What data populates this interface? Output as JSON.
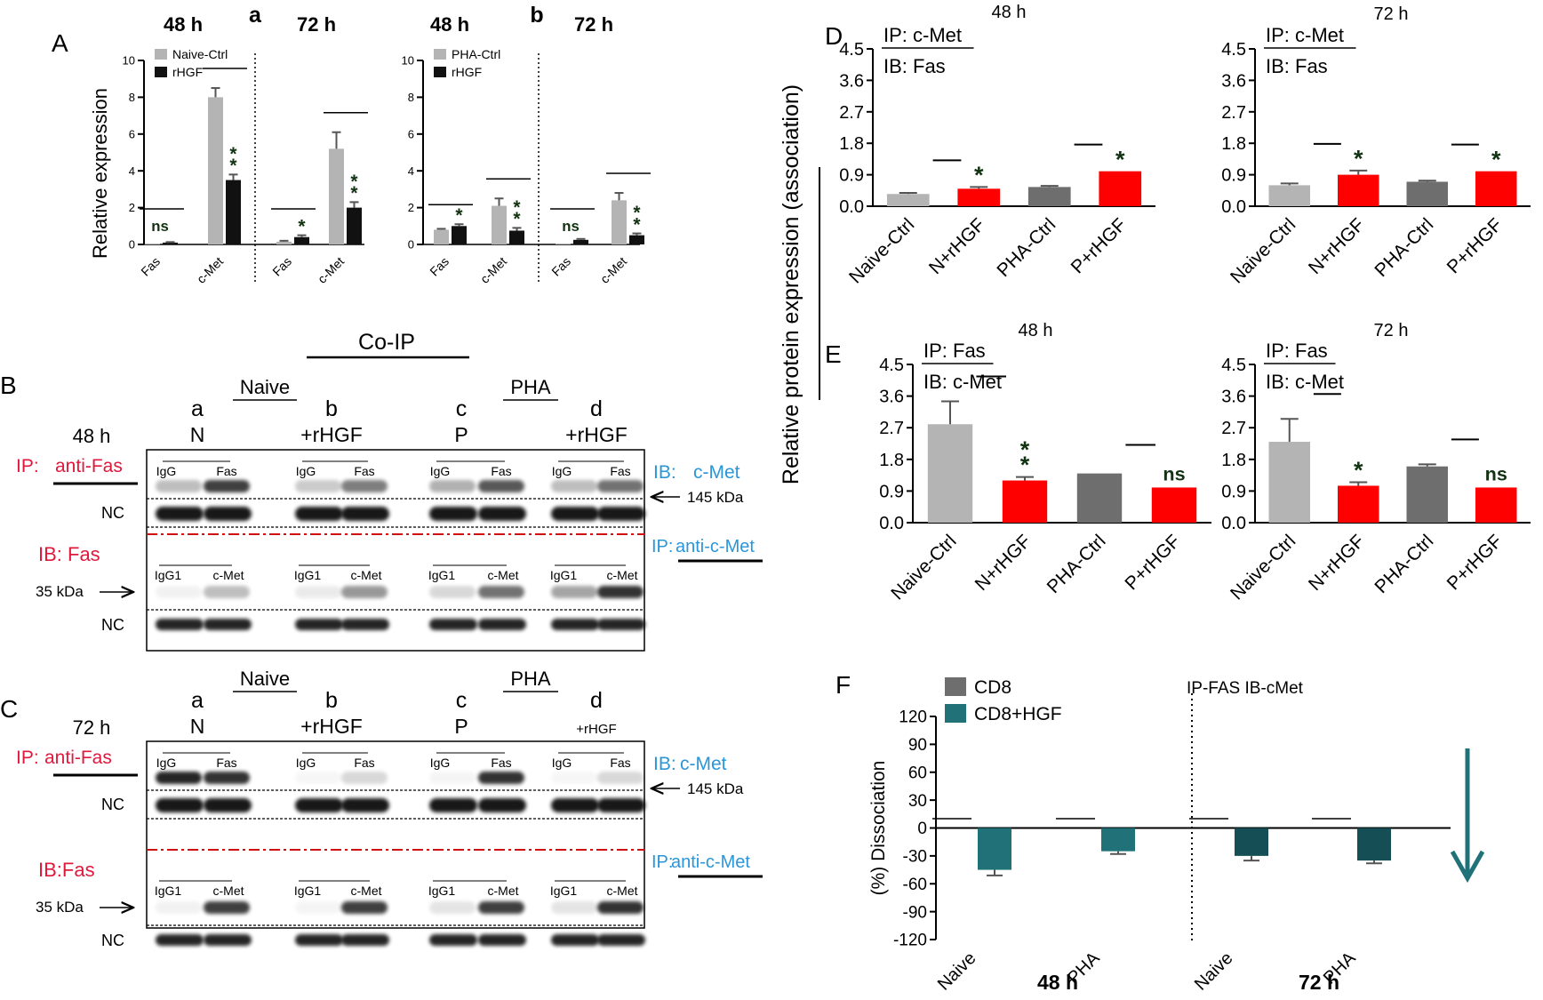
{
  "figure": {
    "panel_letters": {
      "A": "A",
      "B": "B",
      "C": "C",
      "D": "D",
      "E": "E",
      "F": "F"
    },
    "ylabel_A": "Relative expression",
    "ylabel_DE": "Relative protein expression (association)",
    "co_ip": "Co-IP"
  },
  "colors": {
    "light_gray": "#b4b4b4",
    "black": "#111111",
    "dark_gray": "#6e6e6e",
    "red": "#ff0000",
    "teal": "#217278",
    "dark_teal": "#154f55",
    "ip_red": "#e0183c",
    "ib_blue": "#2a96d8"
  },
  "chart_data": [
    {
      "id": "A-a",
      "type": "bar",
      "time_labels": [
        "48 h",
        "72 h"
      ],
      "sublabel": "a",
      "categories": [
        "Fas",
        "c-Met",
        "Fas",
        "c-Met"
      ],
      "series": [
        {
          "name": "Naive-Ctrl",
          "values": [
            0.05,
            8.0,
            0.15,
            5.2
          ],
          "errors": [
            0.02,
            0.5,
            0.05,
            0.9
          ]
        },
        {
          "name": "rHGF",
          "values": [
            0.1,
            3.5,
            0.4,
            2.0
          ],
          "errors": [
            0.03,
            0.3,
            0.1,
            0.3
          ]
        }
      ],
      "significance": [
        "ns",
        "**",
        "*",
        "**"
      ],
      "ylim": [
        0,
        10
      ],
      "yticks": [
        "0",
        "2",
        "4",
        "6",
        "8",
        "10"
      ]
    },
    {
      "id": "A-b",
      "type": "bar",
      "time_labels": [
        "48 h",
        "72 h"
      ],
      "sublabel": "b",
      "categories": [
        "Fas",
        "c-Met",
        "Fas",
        "c-Met"
      ],
      "series": [
        {
          "name": "PHA-Ctrl",
          "values": [
            0.8,
            2.1,
            0.05,
            2.4
          ],
          "errors": [
            0.05,
            0.4,
            0.02,
            0.4
          ]
        },
        {
          "name": "rHGF",
          "values": [
            1.0,
            0.75,
            0.25,
            0.5
          ],
          "errors": [
            0.1,
            0.15,
            0.05,
            0.1
          ]
        }
      ],
      "significance": [
        "*",
        "**",
        "ns",
        "**"
      ],
      "ylim": [
        0,
        10
      ],
      "yticks": [
        "0",
        "2",
        "4",
        "6",
        "8",
        "10"
      ]
    },
    {
      "id": "D-48",
      "type": "bar",
      "title": "48 h",
      "ip": "IP: c-Met",
      "ib": "IB: Fas",
      "categories": [
        "Naive-Ctrl",
        "N+rHGF",
        "PHA-Ctrl",
        "P+rHGF"
      ],
      "values": [
        0.35,
        0.5,
        0.55,
        1.0
      ],
      "errors": [
        0.03,
        0.05,
        0.03,
        0.0
      ],
      "significance": [
        "",
        "*",
        "",
        "*"
      ],
      "ylim": [
        0,
        4.5
      ],
      "yticks": [
        "0.0",
        "0.9",
        "1.8",
        "2.7",
        "3.6",
        "4.5"
      ]
    },
    {
      "id": "D-72",
      "type": "bar",
      "title": "72 h",
      "ip": "IP: c-Met",
      "ib": "IB: Fas",
      "categories": [
        "Naive-Ctrl",
        "N+rHGF",
        "PHA-Ctrl",
        "P+rHGF"
      ],
      "values": [
        0.6,
        0.9,
        0.7,
        1.0
      ],
      "errors": [
        0.05,
        0.12,
        0.03,
        0.0
      ],
      "significance": [
        "",
        "*",
        "",
        "*"
      ],
      "ylim": [
        0,
        4.5
      ],
      "yticks": [
        "0.0",
        "0.9",
        "1.8",
        "2.7",
        "3.6",
        "4.5"
      ]
    },
    {
      "id": "E-48",
      "type": "bar",
      "title": "48 h",
      "ip": "IP: Fas",
      "ib": "IB: c-Met",
      "categories": [
        "Naive-Ctrl",
        "N+rHGF",
        "PHA-Ctrl",
        "P+rHGF"
      ],
      "values": [
        2.8,
        1.2,
        1.4,
        1.0
      ],
      "errors": [
        0.65,
        0.1,
        0.0,
        0.0
      ],
      "significance": [
        "",
        "**",
        "",
        "ns"
      ],
      "ylim": [
        0,
        4.5
      ],
      "yticks": [
        "0.0",
        "0.9",
        "1.8",
        "2.7",
        "3.6",
        "4.5"
      ]
    },
    {
      "id": "E-72",
      "type": "bar",
      "title": "72 h",
      "ip": "IP: Fas",
      "ib": "IB: c-Met",
      "categories": [
        "Naive-Ctrl",
        "N+rHGF",
        "PHA-Ctrl",
        "P+rHGF"
      ],
      "values": [
        2.3,
        1.05,
        1.6,
        1.0
      ],
      "errors": [
        0.65,
        0.1,
        0.06,
        0.0
      ],
      "significance": [
        "",
        "*",
        "",
        "ns"
      ],
      "ylim": [
        0,
        4.5
      ],
      "yticks": [
        "0.0",
        "0.9",
        "1.8",
        "2.7",
        "3.6",
        "4.5"
      ]
    },
    {
      "id": "F",
      "type": "bar",
      "annotation": "IP-FAS IB-cMet",
      "categories": [
        "Naive",
        "PHA",
        "Naive",
        "PHA"
      ],
      "groups": [
        "48 h",
        "72 h"
      ],
      "series": [
        {
          "name": "CD8",
          "values": [
            0,
            0,
            0,
            0
          ]
        },
        {
          "name": "CD8+HGF",
          "values": [
            -45,
            -25,
            -30,
            -35
          ],
          "errors": [
            6,
            3,
            5,
            3
          ]
        }
      ],
      "ylabel": "(%) Dissociation",
      "ylim": [
        -120,
        120
      ],
      "yticks": [
        "120",
        "90",
        "60",
        "30",
        "0",
        "-30",
        "-60",
        "-90",
        "-120"
      ]
    }
  ],
  "blots": {
    "B": {
      "time": "48 h",
      "ip_prefix": "IP:",
      "ip_target": "anti-Fas",
      "ib_left": "IB: Fas",
      "ib_right_prefix": "IB:",
      "ib_right_target": "c-Met",
      "ip_right_prefix": "IP:",
      "ip_right_target": "anti-c-Met",
      "top_group_labels": [
        "Naive",
        "PHA"
      ],
      "lanes": [
        {
          "letter": "a",
          "name": "N"
        },
        {
          "letter": "b",
          "name": "+rHGF"
        },
        {
          "letter": "c",
          "name": "P"
        },
        {
          "letter": "d",
          "name": "+rHGF"
        }
      ],
      "top_row_labels": [
        "IgG",
        "Fas"
      ],
      "bottom_row_labels": [
        "IgG1",
        "c-Met"
      ],
      "nc": "NC",
      "mw_top": "145 kDa",
      "mw_bottom": "35 kDa"
    },
    "C": {
      "time": "72 h",
      "ip_prefix": "IP:",
      "ip_target": "anti-Fas",
      "ib_left": "IB:Fas",
      "ib_right_prefix": "IB:",
      "ib_right_target": "c-Met",
      "ip_right_prefix": "IP:",
      "ip_right_target": "anti-c-Met",
      "top_group_labels": [
        "Naive",
        "PHA"
      ],
      "lanes": [
        {
          "letter": "a",
          "name": "N"
        },
        {
          "letter": "b",
          "name": "+rHGF"
        },
        {
          "letter": "c",
          "name": "P"
        },
        {
          "letter": "d",
          "name": "+rHGF"
        }
      ],
      "top_row_labels": [
        "IgG",
        "Fas"
      ],
      "bottom_row_labels": [
        "IgG1",
        "c-Met"
      ],
      "nc": "NC",
      "mw_top": "145 kDa",
      "mw_bottom": "35 kDa"
    }
  }
}
